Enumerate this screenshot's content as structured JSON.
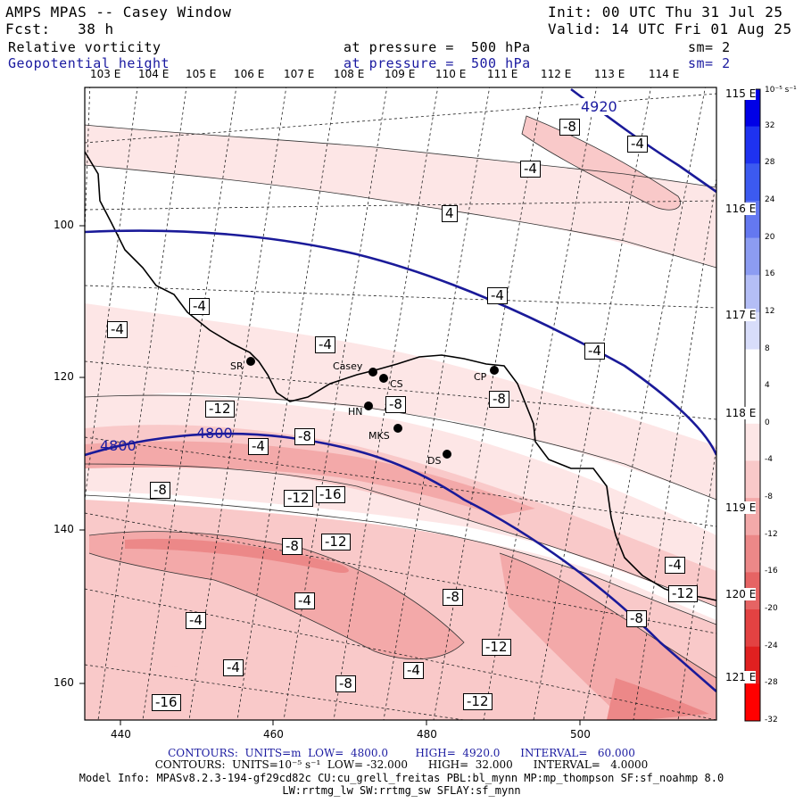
{
  "header": {
    "title": "AMPS MPAS -- Casey Window",
    "init": "Init: 00 UTC Thu 31 Jul 25",
    "fcst": "Fcst:   38 h",
    "valid": "Valid: 14 UTC Fri 01 Aug 25",
    "field1": "Relative vorticity",
    "field1_pressure": "at pressure =  500 hPa",
    "field1_sm": "sm= 2",
    "field2": "Geopotential height",
    "field2_pressure": "at pressure =  500 hPa",
    "field2_sm": "sm= 2"
  },
  "longitude_labels": [
    "103 E",
    "104 E",
    "105 E",
    "106 E",
    "107 E",
    "108 E",
    "109 E",
    "110 E",
    "111 E",
    "112 E",
    "113 E",
    "114 E"
  ],
  "right_lon_labels": [
    "115 E",
    "116 E",
    "117 E",
    "118 E",
    "119 E",
    "120 E",
    "121 E"
  ],
  "x_axis_ticks": [
    "440",
    "460",
    "480",
    "500"
  ],
  "y_axis_ticks": [
    "100",
    "120",
    "140",
    "160"
  ],
  "colorbar": {
    "unit": "10⁻⁵ s⁻¹",
    "labels": [
      "32",
      "28",
      "24",
      "20",
      "16",
      "12",
      "8",
      "4",
      "0",
      "-4",
      "-8",
      "-12",
      "-16",
      "-20",
      "-24",
      "-28",
      "-32"
    ],
    "colors": [
      "#0000e6",
      "#1e32f0",
      "#3c5af0",
      "#6478f0",
      "#8c9cf2",
      "#b4bef6",
      "#d8ddfa",
      "#ffffff",
      "#ffffff",
      "#fde6e6",
      "#f9c9c9",
      "#f3a9a9",
      "#ec8888",
      "#e66464",
      "#e34242",
      "#e02020",
      "#ff0000"
    ]
  },
  "stations": [
    {
      "code": "SR"
    },
    {
      "code": "Casey"
    },
    {
      "code": "CS"
    },
    {
      "code": "HN"
    },
    {
      "code": "MKS"
    },
    {
      "code": "CP"
    },
    {
      "code": "DS"
    }
  ],
  "height_contour_labels": [
    "4920",
    "4800",
    "4800"
  ],
  "vorticity_labels": [
    "-8",
    "-4",
    "-4",
    "4",
    "-4",
    "-4",
    "-4",
    "-4",
    "-4",
    "-8",
    "-8",
    "-12",
    "-8",
    "-4",
    "-8",
    "-12",
    "-16",
    "-8",
    "-12",
    "-4",
    "-8",
    "-4",
    "-4",
    "-12",
    "-8",
    "-12",
    "-4",
    "-8",
    "-4",
    "-12",
    "-16"
  ],
  "footer": {
    "line1_a": "CONTOURS:  UNITS=m  LOW=  4800.0",
    "line1_b": "HIGH=  4920.0",
    "line1_c": "INTERVAL=   60.000",
    "line2_a": "CONTOURS:  UNITS=10⁻⁵ s⁻¹  LOW= -32.000",
    "line2_b": "HIGH=  32.000",
    "line2_c": "INTERVAL=   4.0000",
    "model_info": "Model Info: MPASv8.2.3-194-gf29cd82c CU:cu_grell_freitas PBL:bl_mynn MP:mp_thompson SF:sf_noahmp 8.0",
    "model_info2": "LW:rrtmg_lw SW:rrtmg_sw SFLAY:sf_mynn"
  },
  "colors": {
    "height_contour": "#1a1a99",
    "header_blue": "#1a1aa0",
    "coastline": "#000000"
  }
}
